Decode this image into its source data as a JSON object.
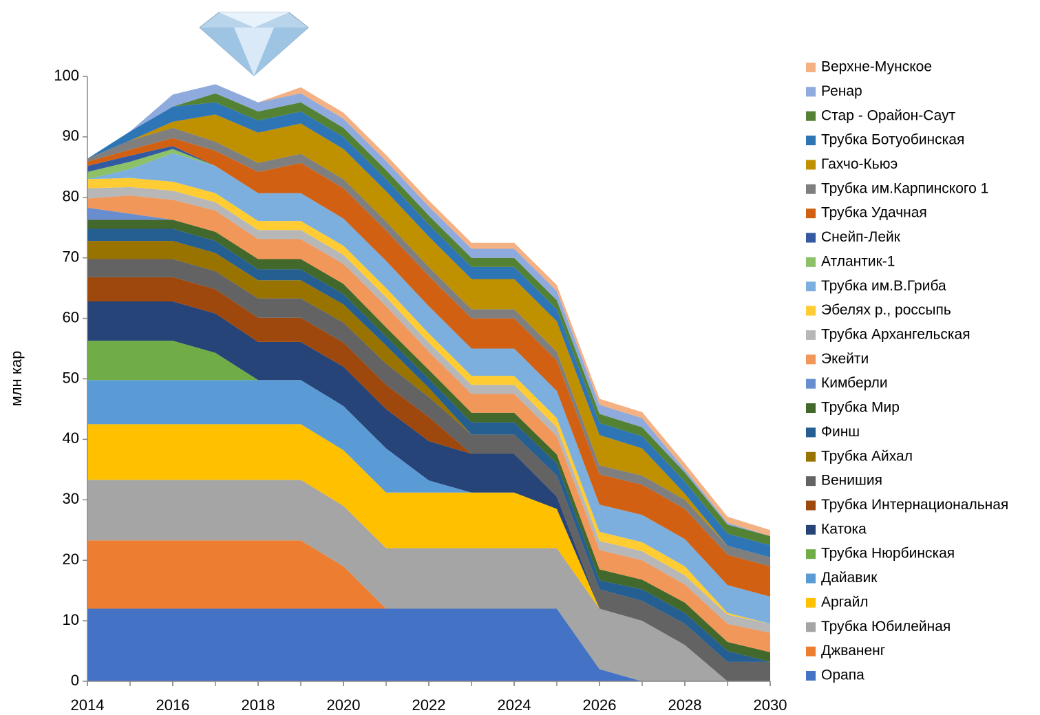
{
  "chart_data": {
    "type": "stacked-area",
    "y_label": "млн кар",
    "x": [
      2014,
      2015,
      2016,
      2017,
      2018,
      2019,
      2020,
      2021,
      2022,
      2023,
      2024,
      2025,
      2026,
      2027,
      2028,
      2029,
      2030
    ],
    "xlim": [
      2014,
      2030
    ],
    "xticks": [
      2014,
      2016,
      2018,
      2020,
      2022,
      2024,
      2026,
      2028,
      2030
    ],
    "ylim": [
      0,
      100
    ],
    "yticks": [
      0,
      10,
      20,
      30,
      40,
      50,
      60,
      70,
      80,
      90,
      100
    ],
    "series": [
      {
        "name": "Орапа",
        "color": "#4472c4",
        "values": [
          12,
          12,
          12,
          12,
          12,
          12,
          12,
          12,
          12,
          12,
          12,
          12,
          2,
          0,
          0,
          0,
          0
        ]
      },
      {
        "name": "Джваненг",
        "color": "#ed7d31",
        "values": [
          11.3,
          11.3,
          11.3,
          11.3,
          11.3,
          11.3,
          7,
          0,
          0,
          0,
          0,
          0,
          0,
          0,
          0,
          0,
          0
        ]
      },
      {
        "name": "Трубка Юбилейная",
        "color": "#a5a5a5",
        "values": [
          10,
          10,
          10,
          10,
          10,
          10,
          10,
          10,
          10,
          10,
          10,
          10,
          10,
          10,
          6,
          0,
          0
        ]
      },
      {
        "name": "Аргайл",
        "color": "#ffc000",
        "values": [
          9.2,
          9.2,
          9.2,
          9.2,
          9.2,
          9.2,
          9.2,
          9.2,
          9.2,
          9.2,
          9.2,
          6.5,
          0,
          0,
          0,
          0,
          0
        ]
      },
      {
        "name": "Дайавик",
        "color": "#5b9bd5",
        "values": [
          7.3,
          7.3,
          7.3,
          7.3,
          7.3,
          7.3,
          7.3,
          7.3,
          2,
          0,
          0,
          0,
          0,
          0,
          0,
          0,
          0
        ]
      },
      {
        "name": "Трубка Нюрбинская",
        "color": "#70ad47",
        "values": [
          6.5,
          6.5,
          6.5,
          4.5,
          0,
          0,
          0,
          0,
          0,
          0,
          0,
          0,
          0,
          0,
          0,
          0,
          0
        ]
      },
      {
        "name": "Катока",
        "color": "#264478",
        "values": [
          6.5,
          6.5,
          6.5,
          6.5,
          6.3,
          6.3,
          6.5,
          6.5,
          6.5,
          6.4,
          6.4,
          2,
          0,
          0,
          0,
          0,
          0
        ]
      },
      {
        "name": "Трубка Интернациональная",
        "color": "#9e480e",
        "values": [
          4,
          4,
          4,
          4,
          4,
          4,
          4,
          4,
          4,
          0,
          0,
          0,
          0,
          0,
          0,
          0,
          0
        ]
      },
      {
        "name": "Венишия",
        "color": "#636363",
        "values": [
          3,
          3,
          3,
          3,
          3.2,
          3.2,
          3.3,
          3.5,
          3.3,
          3.2,
          3.2,
          3.5,
          3.2,
          3.3,
          3.5,
          3.2,
          3.2
        ]
      },
      {
        "name": "Трубка Айхал",
        "color": "#997300",
        "values": [
          3,
          3,
          3,
          3,
          3,
          3,
          3,
          3,
          1.5,
          0,
          0,
          0,
          0,
          0,
          0,
          0,
          0
        ]
      },
      {
        "name": "Финш",
        "color": "#255e91",
        "values": [
          2,
          2,
          2,
          2,
          1.8,
          1.8,
          1.7,
          1.5,
          1.5,
          2,
          2,
          2,
          1.5,
          1.9,
          1.8,
          1.8,
          0
        ]
      },
      {
        "name": "Трубка Мир",
        "color": "#43682b",
        "values": [
          1.5,
          1.5,
          1.5,
          1.5,
          1.7,
          1.7,
          1.7,
          1.5,
          1.5,
          1.6,
          1.6,
          1.5,
          1.8,
          1.6,
          1.7,
          1.5,
          1.6
        ]
      },
      {
        "name": "Кимберли",
        "color": "#698ed0",
        "values": [
          2,
          1,
          0,
          0,
          0,
          0,
          0,
          0,
          0,
          0,
          0,
          0,
          0,
          0,
          0,
          0,
          0
        ]
      },
      {
        "name": "Экейти",
        "color": "#f1975a",
        "values": [
          1.5,
          3,
          3.3,
          3.5,
          3.3,
          3.3,
          3.3,
          3.5,
          3,
          3.1,
          3.1,
          3,
          3.2,
          3.2,
          3,
          3,
          3.2
        ]
      },
      {
        "name": "Трубка Архангельская",
        "color": "#b7b7b7",
        "values": [
          1.7,
          1.4,
          1.5,
          1.4,
          1.5,
          1.5,
          1.5,
          1.5,
          1.5,
          1.5,
          1.5,
          1.5,
          1.5,
          1.5,
          1.5,
          1.5,
          1.5
        ]
      },
      {
        "name": "Эбелях р., россыпь",
        "color": "#ffcd33",
        "values": [
          1.5,
          1.5,
          1.5,
          1.5,
          1.5,
          1.5,
          1.5,
          1.5,
          1.5,
          1.5,
          1.5,
          1.5,
          1.5,
          1.5,
          1.5,
          0.3,
          0
        ]
      },
      {
        "name": "Трубка им.В.Гриба",
        "color": "#7cafdd",
        "values": [
          0,
          1.5,
          4.7,
          4.5,
          4.6,
          4.6,
          4.5,
          4.5,
          4.5,
          4.5,
          4.5,
          4.5,
          4.5,
          4.5,
          4.5,
          4.6,
          4.5
        ]
      },
      {
        "name": "Атлантик-1",
        "color": "#8cc168",
        "values": [
          1.2,
          1.2,
          0.7,
          0,
          0,
          0,
          0,
          0,
          0,
          0,
          0,
          0,
          0,
          0,
          0,
          0,
          0
        ]
      },
      {
        "name": "Снейп-Лейк",
        "color": "#335aa1",
        "values": [
          1,
          1,
          0.5,
          0,
          0,
          0,
          0,
          0,
          0,
          0,
          0,
          0,
          0,
          0,
          0,
          0,
          0
        ]
      },
      {
        "name": "Трубка Удачная",
        "color": "#d26012",
        "values": [
          0.7,
          1,
          1.3,
          2.5,
          3.5,
          5,
          5,
          5,
          5,
          5,
          5,
          5,
          5,
          5,
          5,
          5,
          5
        ]
      },
      {
        "name": "Трубка им.Карпинского 1",
        "color": "#7f7f7f",
        "values": [
          0.5,
          1.5,
          1.7,
          1.5,
          1.5,
          1.5,
          1.5,
          1.5,
          1.5,
          1.5,
          1.5,
          1.5,
          1.5,
          1.5,
          1.5,
          1.5,
          1.5
        ]
      },
      {
        "name": "Гахчо-Кьюэ",
        "color": "#bf9000",
        "values": [
          0,
          0,
          1,
          4.5,
          5,
          5,
          5,
          5,
          5,
          5,
          5,
          5,
          5,
          4.5,
          1,
          0,
          0
        ]
      },
      {
        "name": "Трубка Ботуобинская",
        "color": "#2e75b6",
        "values": [
          0,
          1.5,
          2.5,
          2,
          2,
          2,
          2,
          2,
          2,
          2,
          2,
          2,
          2,
          2,
          2,
          2,
          2
        ]
      },
      {
        "name": "Стар - Орайон-Саут",
        "color": "#548235",
        "values": [
          0,
          0,
          0,
          1.5,
          1.5,
          1.5,
          1.5,
          1.5,
          1.5,
          1.5,
          1.5,
          1.5,
          1.5,
          1.5,
          1.5,
          1.5,
          1.5
        ]
      },
      {
        "name": "Ренар",
        "color": "#8faadc",
        "values": [
          0,
          0,
          2,
          1.5,
          1.5,
          1.5,
          1.5,
          1.5,
          1.5,
          1.5,
          1.5,
          1.5,
          1.5,
          1.5,
          0.5,
          0.3,
          0
        ]
      },
      {
        "name": "Верхне-Мунское",
        "color": "#f4b183",
        "values": [
          0,
          0,
          0,
          0,
          0,
          1,
          1,
          1,
          1,
          1,
          1,
          1,
          1,
          1,
          1,
          1,
          1
        ]
      }
    ]
  }
}
